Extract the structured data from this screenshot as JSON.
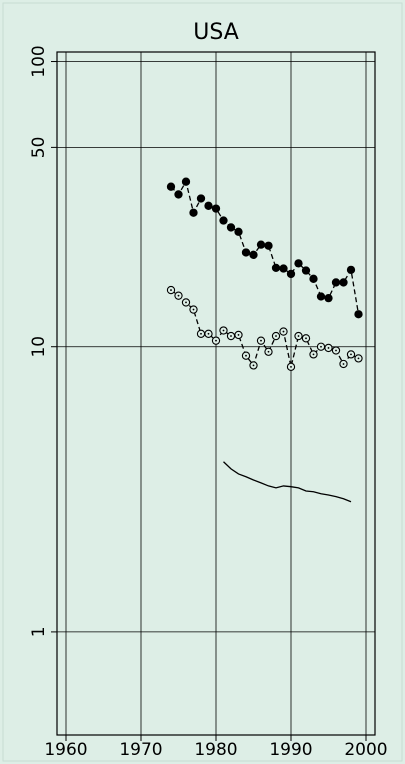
{
  "chart_data": {
    "type": "line",
    "title": "USA",
    "x": [
      1974,
      1975,
      1976,
      1977,
      1978,
      1979,
      1980,
      1981,
      1982,
      1983,
      1984,
      1985,
      1986,
      1987,
      1988,
      1989,
      1990,
      1991,
      1992,
      1993,
      1994,
      1995,
      1996,
      1997,
      1998,
      1999
    ],
    "series": [
      {
        "color": "#000000",
        "marker": "filled",
        "dashed": true,
        "values": [
          36.4,
          34.2,
          37.9,
          29.5,
          33.1,
          31.2,
          30.5,
          27.7,
          26.2,
          25.3,
          21.4,
          21.0,
          22.8,
          22.6,
          18.9,
          18.8,
          18.0,
          19.6,
          18.5,
          17.3,
          15.0,
          14.8,
          16.8,
          16.8,
          18.6,
          13.0
        ]
      },
      {
        "color": "#000000",
        "marker": "open",
        "dashed": true,
        "values": [
          15.8,
          15.1,
          14.3,
          13.5,
          11.1,
          11.1,
          10.5,
          11.4,
          10.9,
          11.0,
          9.3,
          8.6,
          10.5,
          9.6,
          10.9,
          11.3,
          8.5,
          10.9,
          10.7,
          9.4,
          10.0,
          9.9,
          9.7,
          8.7,
          9.4,
          9.1
        ]
      },
      {
        "color": "#000000",
        "marker": "none",
        "dashed": false,
        "values": [
          null,
          null,
          null,
          null,
          null,
          null,
          null,
          3.95,
          3.73,
          3.58,
          3.5,
          3.41,
          3.33,
          3.25,
          3.2,
          3.25,
          3.23,
          3.2,
          3.12,
          3.1,
          3.05,
          3.02,
          2.98,
          2.93,
          2.86,
          null
        ]
      }
    ],
    "xlim": [
      1958.8,
      2001.2
    ],
    "xticks": [
      1960,
      1970,
      1980,
      1990,
      2000
    ],
    "ylim": [
      0.435,
      108
    ],
    "yticks": [
      1,
      10,
      50,
      100
    ],
    "ylog": true,
    "grid": true
  }
}
